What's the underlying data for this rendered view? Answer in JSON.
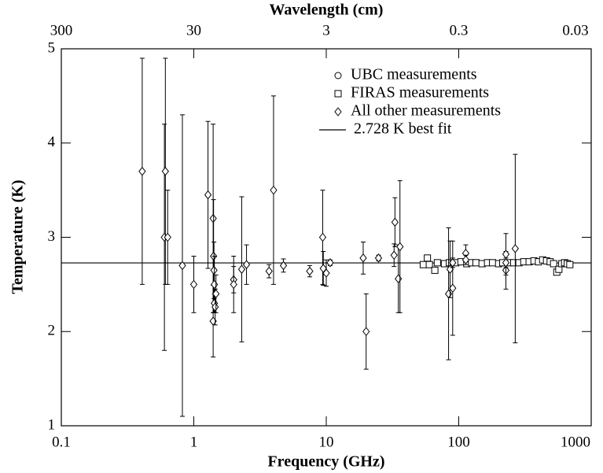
{
  "chart_data": {
    "type": "scatter",
    "xlabel": "Frequency (GHz)",
    "ylabel": "Temperature (K)",
    "x2label": "Wavelength (cm)",
    "xscale": "log",
    "xlim": [
      0.1,
      1000
    ],
    "xticks": [
      0.1,
      1,
      10,
      100,
      1000
    ],
    "x2lim": [
      300,
      0.03
    ],
    "x2ticks": [
      300,
      30,
      3,
      0.3,
      0.03
    ],
    "ylim": [
      1,
      5
    ],
    "yticks": [
      1,
      2,
      3,
      4,
      5
    ],
    "legend": "upper right",
    "color": "#000000",
    "series": [
      {
        "name": "UBC measurements",
        "marker": "circle",
        "x": [],
        "values": []
      },
      {
        "name": "FIRAS measurements",
        "marker": "square",
        "x": [
          54,
          58,
          60,
          66,
          69,
          78,
          85,
          95,
          104,
          115,
          125,
          135,
          150,
          165,
          180,
          200,
          215,
          240,
          260,
          285,
          310,
          340,
          370,
          400,
          430,
          460,
          490,
          520,
          550,
          570,
          600,
          630,
          660,
          690
        ],
        "values": [
          2.71,
          2.78,
          2.71,
          2.65,
          2.73,
          2.72,
          2.73,
          2.73,
          2.74,
          2.72,
          2.73,
          2.73,
          2.72,
          2.73,
          2.73,
          2.72,
          2.73,
          2.73,
          2.73,
          2.73,
          2.74,
          2.74,
          2.75,
          2.74,
          2.76,
          2.75,
          2.74,
          2.72,
          2.63,
          2.66,
          2.72,
          2.73,
          2.72,
          2.71
        ]
      },
      {
        "name": "All other measurements",
        "marker": "diamond",
        "x": [
          0.408,
          0.6,
          0.61,
          0.635,
          0.82,
          1.0,
          1.28,
          1.4,
          1.4,
          1.41,
          1.42,
          1.43,
          1.43,
          1.45,
          1.47,
          2.0,
          2.0,
          2.3,
          2.5,
          3.7,
          4.0,
          4.75,
          7.5,
          9.4,
          9.5,
          10.0,
          10.7,
          19.0,
          20.0,
          24.8,
          32.5,
          33.0,
          35.0,
          36.0,
          83.8,
          86,
          90.0,
          90.0,
          113,
          113,
          227,
          227,
          227,
          267
        ],
        "values": [
          3.7,
          3.0,
          3.7,
          3.0,
          2.7,
          2.5,
          3.45,
          2.11,
          3.2,
          2.8,
          2.65,
          2.5,
          2.3,
          2.26,
          2.4,
          2.55,
          2.5,
          2.66,
          2.71,
          2.64,
          3.5,
          2.7,
          2.64,
          3.0,
          2.67,
          2.62,
          2.73,
          2.78,
          2.0,
          2.78,
          2.81,
          3.16,
          2.56,
          2.9,
          2.4,
          2.66,
          2.46,
          2.73,
          2.83,
          2.76,
          2.65,
          2.82,
          2.73,
          2.88
        ],
        "errors": [
          1.2,
          1.2,
          1.2,
          0.5,
          1.6,
          0.3,
          0.78,
          0.38,
          1.0,
          0.6,
          0.3,
          0.3,
          0.1,
          0.19,
          0.2,
          0.14,
          0.3,
          0.77,
          0.21,
          0.07,
          1.0,
          0.07,
          0.06,
          0.5,
          0.18,
          0.14,
          0.03,
          0.17,
          0.4,
          0.03,
          0.12,
          0.26,
          0.36,
          0.7,
          0.7,
          0.3,
          0.5,
          0.05,
          0.09,
          0.05,
          0.2,
          0.22,
          0.05,
          1.0
        ]
      }
    ],
    "best_fit": {
      "name": "2.728 K best fit",
      "value": 2.728
    }
  }
}
